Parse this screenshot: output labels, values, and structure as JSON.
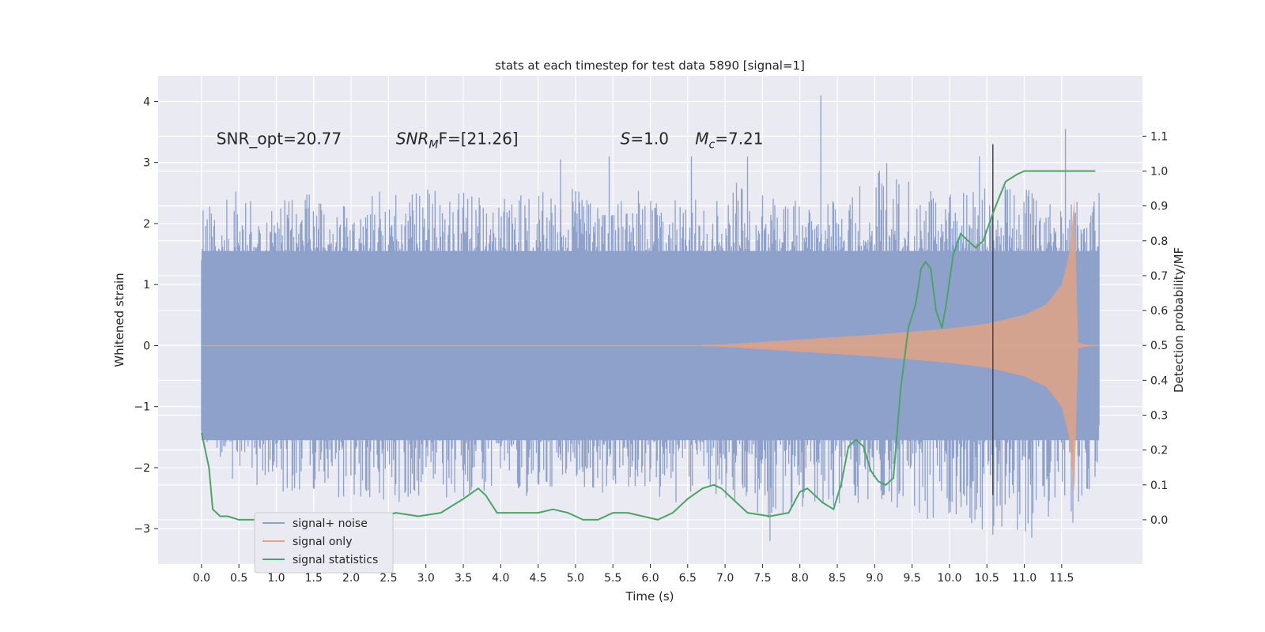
{
  "chart_data": {
    "type": "line",
    "title": "stats at each timestep for test data 5890 [signal=1]",
    "xlabel": "Time (s)",
    "ylabel_left": "Whitened strain",
    "ylabel_right": "Detection probability/MF",
    "xlim": [
      -0.58,
      12.58
    ],
    "ylim_left": [
      -3.58,
      4.42
    ],
    "ylim_right": [
      -0.127,
      1.273
    ],
    "x_ticks": [
      0.0,
      0.5,
      1.0,
      1.5,
      2.0,
      2.5,
      3.0,
      3.5,
      4.0,
      4.5,
      5.0,
      5.5,
      6.0,
      6.5,
      7.0,
      7.5,
      8.0,
      8.5,
      9.0,
      9.5,
      10.0,
      10.5,
      11.0,
      11.5
    ],
    "x_tick_labels": [
      "0.0",
      "0.5",
      "1.0",
      "1.5",
      "2.0",
      "2.5",
      "3.0",
      "3.5",
      "4.0",
      "4.5",
      "5.0",
      "5.5",
      "6.0",
      "6.5",
      "7.0",
      "7.5",
      "8.0",
      "8.5",
      "9.0",
      "9.5",
      "10.0",
      "10.5",
      "11.0",
      "11.5"
    ],
    "y_left_ticks": [
      -3,
      -2,
      -1,
      0,
      1,
      2,
      3,
      4
    ],
    "y_left_tick_labels": [
      "−3",
      "−2",
      "−1",
      "0",
      "1",
      "2",
      "3",
      "4"
    ],
    "y_right_ticks": [
      0.0,
      0.1,
      0.2,
      0.3,
      0.4,
      0.5,
      0.6,
      0.7,
      0.8,
      0.9,
      1.0,
      1.1
    ],
    "y_right_tick_labels": [
      "0.0",
      "0.1",
      "0.2",
      "0.3",
      "0.4",
      "0.5",
      "0.6",
      "0.7",
      "0.8",
      "0.9",
      "1.0",
      "1.1"
    ],
    "grid": true,
    "legend_position": "lower-left",
    "annotations": [
      {
        "text": "SNR_opt=20.77",
        "x": 0.2,
        "y": 3.3,
        "italic_prefix": false
      },
      {
        "prefix": "SNR",
        "sub": "M",
        "rest": "F=[21.26]",
        "x": 2.6,
        "y": 3.3
      },
      {
        "prefix": "S",
        "sub": "",
        "rest": "=1.0",
        "x": 5.6,
        "y": 3.3
      },
      {
        "prefix": "M",
        "sub": "c",
        "rest": "=7.21",
        "x": 6.6,
        "y": 3.3
      }
    ],
    "vertical_marker": {
      "x": 10.58,
      "y_range": [
        -2.45,
        3.3
      ]
    },
    "series": [
      {
        "name": "signal+ noise",
        "axis": "left",
        "color": "#8ea1cb",
        "x_range": [
          0.0,
          12.0
        ],
        "envelope_upper": [
          2.2,
          2.6,
          2.4,
          2.5,
          2.3,
          2.6,
          2.5,
          2.7,
          2.4,
          2.5,
          2.6,
          2.5,
          2.6,
          2.5,
          2.4,
          2.7,
          2.6,
          2.5,
          2.4,
          3.1,
          2.6,
          2.5,
          2.7,
          2.6,
          2.4,
          2.5
        ],
        "envelope_lower": [
          -1.5,
          -2.3,
          -2.4,
          -2.4,
          -2.6,
          -2.7,
          -2.5,
          -2.6,
          -2.4,
          -2.5,
          -2.3,
          -2.4,
          -2.5,
          -2.6,
          -2.5,
          -2.6,
          -2.9,
          -2.6,
          -2.7,
          -2.6,
          -2.8,
          -3.0,
          -3.1,
          -3.1,
          -2.9,
          -2.2
        ],
        "spikes": [
          {
            "x": 8.28,
            "y": 4.1
          },
          {
            "x": 5.45,
            "y": 3.1
          },
          {
            "x": 6.55,
            "y": 3.1
          },
          {
            "x": 4.8,
            "y": 3.05
          },
          {
            "x": 7.3,
            "y": 3.1
          },
          {
            "x": 10.4,
            "y": 3.1
          },
          {
            "x": 11.55,
            "y": 3.55
          },
          {
            "x": 7.6,
            "y": -3.2
          },
          {
            "x": 10.58,
            "y": -3.1
          },
          {
            "x": 11.1,
            "y": -3.15
          },
          {
            "x": 11.65,
            "y": -2.9
          }
        ]
      },
      {
        "name": "signal only",
        "axis": "left",
        "color": "#e0a386",
        "x": [
          0.0,
          5.0,
          6.5,
          7.0,
          7.5,
          8.0,
          8.5,
          9.0,
          9.5,
          10.0,
          10.5,
          11.0,
          11.3,
          11.5,
          11.6,
          11.67,
          11.72,
          11.8,
          12.0
        ],
        "amplitude": [
          0.0,
          0.0,
          0.0,
          0.02,
          0.06,
          0.1,
          0.14,
          0.18,
          0.23,
          0.28,
          0.36,
          0.5,
          0.68,
          1.0,
          1.5,
          2.4,
          0.05,
          0.02,
          0.0
        ]
      },
      {
        "name": "signal statistics",
        "axis": "right",
        "color": "#4aa564",
        "x": [
          0.0,
          0.1,
          0.15,
          0.25,
          0.35,
          0.5,
          0.7,
          1.0,
          1.3,
          1.5,
          1.6,
          1.8,
          2.0,
          2.2,
          2.4,
          2.6,
          2.9,
          3.2,
          3.5,
          3.7,
          3.8,
          3.95,
          4.1,
          4.3,
          4.5,
          4.7,
          4.9,
          5.1,
          5.3,
          5.5,
          5.7,
          5.9,
          6.1,
          6.3,
          6.5,
          6.7,
          6.85,
          6.95,
          7.1,
          7.3,
          7.6,
          7.85,
          8.0,
          8.1,
          8.3,
          8.45,
          8.55,
          8.65,
          8.75,
          8.85,
          8.95,
          9.05,
          9.15,
          9.25,
          9.35,
          9.45,
          9.55,
          9.62,
          9.68,
          9.75,
          9.82,
          9.9,
          9.95,
          10.05,
          10.15,
          10.25,
          10.35,
          10.45,
          10.6,
          10.75,
          10.9,
          11.0,
          11.2,
          11.5,
          11.95
        ],
        "y": [
          0.25,
          0.15,
          0.03,
          0.01,
          0.01,
          0.0,
          0.0,
          0.0,
          0.0,
          0.01,
          0.0,
          0.0,
          0.0,
          0.0,
          0.01,
          0.02,
          0.01,
          0.02,
          0.06,
          0.09,
          0.07,
          0.02,
          0.02,
          0.02,
          0.02,
          0.03,
          0.02,
          0.0,
          0.0,
          0.02,
          0.02,
          0.01,
          0.0,
          0.02,
          0.06,
          0.09,
          0.1,
          0.09,
          0.06,
          0.02,
          0.01,
          0.02,
          0.08,
          0.09,
          0.05,
          0.03,
          0.1,
          0.21,
          0.23,
          0.21,
          0.14,
          0.11,
          0.1,
          0.12,
          0.38,
          0.55,
          0.62,
          0.72,
          0.74,
          0.72,
          0.6,
          0.55,
          0.61,
          0.76,
          0.82,
          0.8,
          0.78,
          0.8,
          0.89,
          0.97,
          0.99,
          1.0,
          1.0,
          1.0,
          1.0
        ]
      }
    ]
  }
}
